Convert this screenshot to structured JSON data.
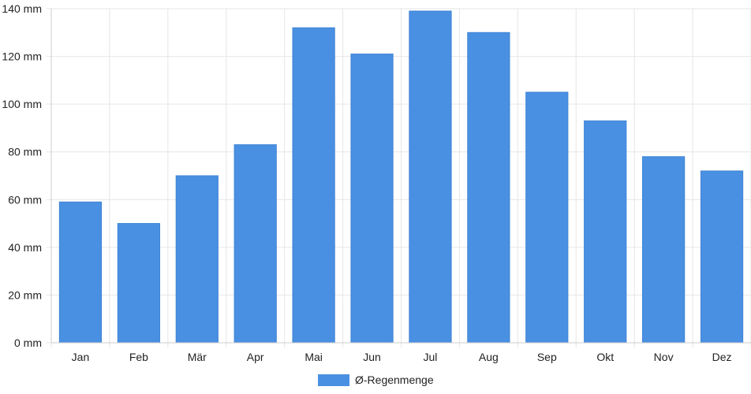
{
  "chart_data": {
    "type": "bar",
    "categories": [
      "Jan",
      "Feb",
      "Mär",
      "Apr",
      "Mai",
      "Jun",
      "Jul",
      "Aug",
      "Sep",
      "Okt",
      "Nov",
      "Dez"
    ],
    "series": [
      {
        "name": "Ø-Regenmenge",
        "values": [
          59,
          50,
          70,
          83,
          132,
          121,
          139,
          130,
          105,
          93,
          78,
          72
        ]
      }
    ],
    "ylim": [
      0,
      140
    ],
    "yticks": [
      0,
      20,
      40,
      60,
      80,
      100,
      120,
      140
    ],
    "ytick_labels": [
      "0 mm",
      "20 mm",
      "40 mm",
      "60 mm",
      "80 mm",
      "100 mm",
      "120 mm",
      "140 mm"
    ],
    "grid": true,
    "legend_position": "bottom-center",
    "colors": {
      "bar": "#4a90e2",
      "grid": "#e6e6e6",
      "axis": "#cccccc"
    }
  }
}
